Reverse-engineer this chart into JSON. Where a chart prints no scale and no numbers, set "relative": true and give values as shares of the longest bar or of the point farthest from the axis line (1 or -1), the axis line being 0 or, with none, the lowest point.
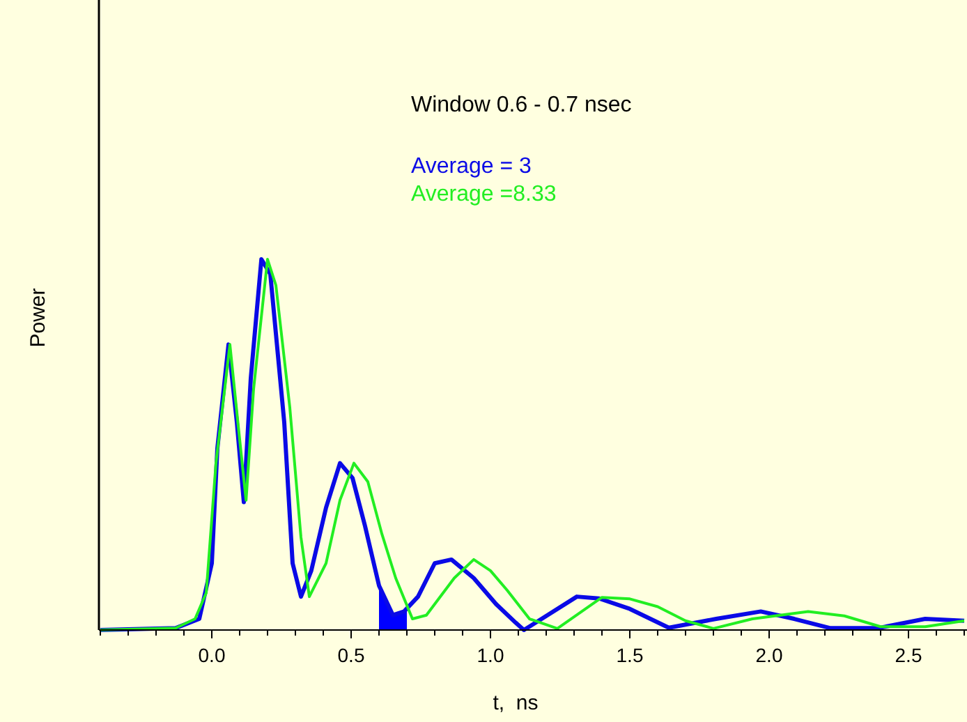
{
  "chart_data": {
    "type": "line",
    "relative": true,
    "xlabel": "t,  ns",
    "ylabel": "Power",
    "xlim": [
      -0.405,
      2.71
    ],
    "xticks": [
      {
        "value": -0.4,
        "label": null
      },
      {
        "value": -0.3,
        "label": null
      },
      {
        "value": -0.2,
        "label": null
      },
      {
        "value": -0.1,
        "label": null
      },
      {
        "value": 0,
        "label": "0.0"
      },
      {
        "value": 0.1,
        "label": null
      },
      {
        "value": 0.2,
        "label": null
      },
      {
        "value": 0.3,
        "label": null
      },
      {
        "value": 0.4,
        "label": null
      },
      0.5,
      {
        "value": 0.6,
        "label": null
      },
      {
        "value": 0.7,
        "label": null
      },
      {
        "value": 0.8,
        "label": null
      },
      {
        "value": 0.9,
        "label": null
      },
      {
        "value": 1,
        "label": "1.0"
      },
      {
        "value": 1.1,
        "label": null
      },
      {
        "value": 1.2,
        "label": null
      },
      {
        "value": 1.3,
        "label": null
      },
      {
        "value": 1.4,
        "label": null
      },
      1.5,
      {
        "value": 1.6,
        "label": null
      },
      {
        "value": 1.7,
        "label": null
      },
      {
        "value": 1.8,
        "label": null
      },
      {
        "value": 1.9,
        "label": null
      },
      {
        "value": 2,
        "label": "2.0"
      },
      {
        "value": 2.1,
        "label": null
      },
      {
        "value": 2.2,
        "label": null
      },
      {
        "value": 2.3,
        "label": null
      },
      {
        "value": 2.4,
        "label": null
      },
      2.5,
      {
        "value": 2.6,
        "label": null
      },
      {
        "value": 2.7,
        "label": null
      }
    ],
    "tick_labels": "x",
    "grid": false,
    "marker": "none",
    "line_style": "solid",
    "annotations": [
      "Window 0.6 - 0.7 nsec",
      "Average = 3",
      "Average =8.33"
    ],
    "bands": [
      {
        "axis": "x",
        "from": 0.6,
        "to": 0.7,
        "color": "#0000ff"
      }
    ],
    "series": [
      {
        "color": "#0a0ae6",
        "x": [
          -0.4,
          -0.13,
          -0.045,
          0,
          0.02,
          0.06,
          0.09,
          0.115,
          0.14,
          0.178,
          0.21,
          0.26,
          0.29,
          0.32,
          0.357,
          0.41,
          0.46,
          0.505,
          0.55,
          0.6,
          0.65,
          0.69,
          0.74,
          0.8,
          0.86,
          0.94,
          1.02,
          1.09,
          1.12,
          1.31,
          1.39,
          1.5,
          1.64,
          1.81,
          1.97,
          2.09,
          2.22,
          2.39,
          2.56,
          2.7
        ],
        "values": [
          0,
          0.005,
          0.03,
          0.18,
          0.49,
          0.77,
          0.56,
          0.345,
          0.68,
          1,
          0.96,
          0.56,
          0.18,
          0.09,
          0.16,
          0.33,
          0.45,
          0.41,
          0.28,
          0.12,
          0.04,
          0.05,
          0.09,
          0.18,
          0.19,
          0.14,
          0.07,
          0.02,
          0,
          0.09,
          0.085,
          0.057,
          0.006,
          0.03,
          0.05,
          0.03,
          0.005,
          0.005,
          0.03,
          0.025
        ]
      },
      {
        "color": "#22ee22",
        "x": [
          -0.4,
          -0.13,
          -0.06,
          -0.02,
          0.015,
          0.065,
          0.095,
          0.123,
          0.15,
          0.2,
          0.23,
          0.28,
          0.32,
          0.35,
          0.41,
          0.46,
          0.51,
          0.56,
          0.61,
          0.66,
          0.72,
          0.77,
          0.87,
          0.94,
          1.0,
          1.06,
          1.14,
          1.24,
          1.4,
          1.5,
          1.6,
          1.7,
          1.8,
          1.94,
          2.14,
          2.27,
          2.4,
          2.56,
          2.7
        ],
        "values": [
          0,
          0.005,
          0.03,
          0.1,
          0.45,
          0.77,
          0.55,
          0.35,
          0.65,
          1,
          0.93,
          0.6,
          0.25,
          0.09,
          0.18,
          0.35,
          0.45,
          0.4,
          0.26,
          0.14,
          0.03,
          0.04,
          0.14,
          0.19,
          0.16,
          0.107,
          0.03,
          0.004,
          0.088,
          0.084,
          0.063,
          0.025,
          0.004,
          0.03,
          0.05,
          0.038,
          0.009,
          0.009,
          0.025
        ]
      }
    ]
  }
}
